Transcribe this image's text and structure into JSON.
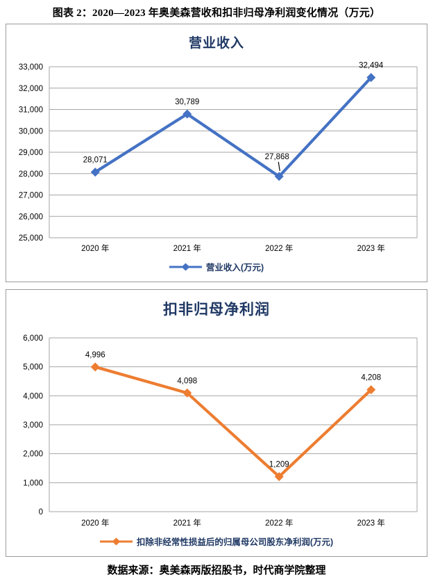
{
  "page": {
    "title": "图表 2：2020—2023 年奥美森营收和扣非归母净利润变化情况（万元）",
    "source": "数据来源：奥美森两版招股书，时代商学院整理"
  },
  "colors": {
    "revenue_line": "#4472C4",
    "profit_line": "#ED7D31",
    "title_navy": "#1F3864",
    "gridline": "#A6A6A6",
    "axis_text": "#000000",
    "box_border": "#9a9a9a"
  },
  "chart_data": [
    {
      "type": "line",
      "title": "营业收入",
      "categories": [
        "2020 年",
        "2021 年",
        "2022 年",
        "2023 年"
      ],
      "series": [
        {
          "name": "营业收入(万元)",
          "color": "#4472C4",
          "values": [
            28071,
            30789,
            27868,
            32494
          ]
        }
      ],
      "data_labels": [
        "28,071",
        "30,789",
        "27,868",
        "32,494"
      ],
      "ylim": [
        25000,
        33000
      ],
      "ytick_step": 1000,
      "ytick_labels": [
        "33,000",
        "32,000",
        "31,000",
        "30,000",
        "29,000",
        "28,000",
        "27,000",
        "26,000",
        "25,000"
      ],
      "grid": true,
      "marker": "diamond",
      "legend_position": "bottom",
      "callout_index": 2
    },
    {
      "type": "line",
      "title": "扣非归母净利润",
      "categories": [
        "2020 年",
        "2021 年",
        "2022 年",
        "2023 年"
      ],
      "series": [
        {
          "name": "扣除非经常性损益后的归属母公司股东净利润(万元)",
          "color": "#ED7D31",
          "values": [
            4996,
            4098,
            1209,
            4208
          ]
        }
      ],
      "data_labels": [
        "4,996",
        "4,098",
        "1,209",
        "4,208"
      ],
      "ylim": [
        0,
        6000
      ],
      "ytick_step": 1000,
      "ytick_labels": [
        "6,000",
        "5,000",
        "4,000",
        "3,000",
        "2,000",
        "1,000",
        "0"
      ],
      "grid": true,
      "marker": "diamond",
      "legend_position": "bottom",
      "callout_index": -1
    }
  ]
}
